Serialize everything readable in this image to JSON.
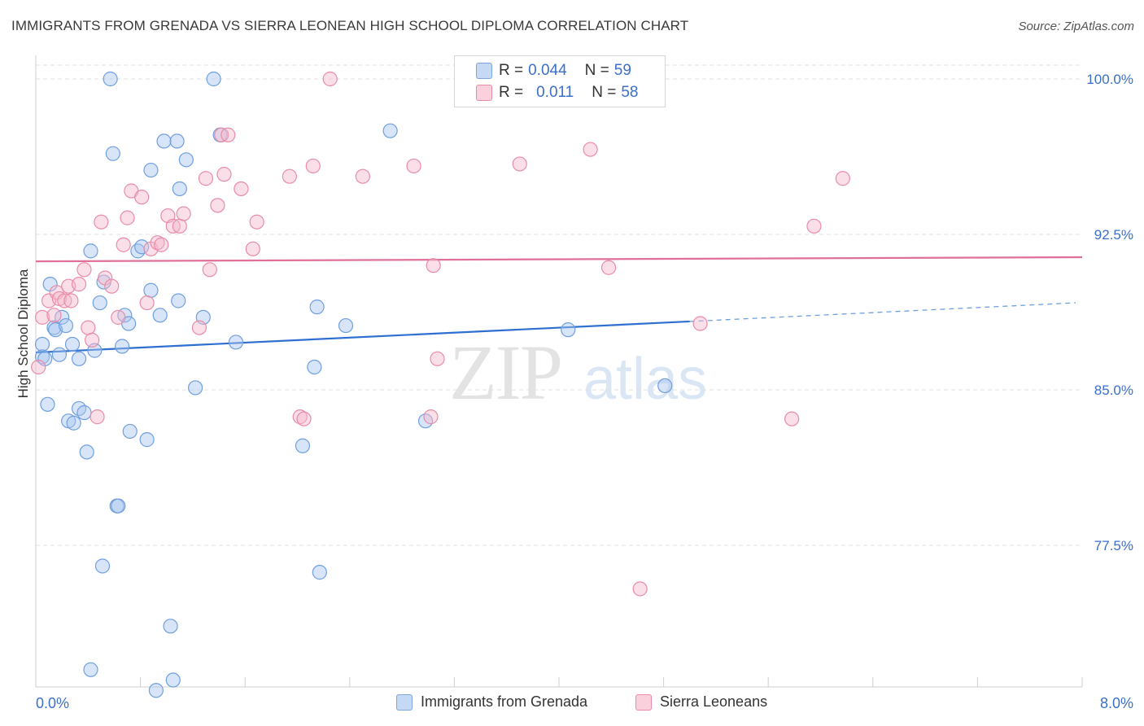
{
  "header": {
    "title": "IMMIGRANTS FROM GRENADA VS SIERRA LEONEAN HIGH SCHOOL DIPLOMA CORRELATION CHART",
    "source": "Source: ZipAtlas.com"
  },
  "watermark": {
    "zip": "ZIP",
    "atlas": "atlas"
  },
  "legend_box": {
    "rows": [
      {
        "r_label": "R =",
        "r_value": "0.044",
        "n_label": "N =",
        "n_value": "59",
        "color": "#a9c6ef"
      },
      {
        "r_label": "R =",
        "r_value": "0.011",
        "n_label": "N =",
        "n_value": "58",
        "color": "#f5b8cb"
      }
    ]
  },
  "bottom_legend": {
    "items": [
      {
        "label": "Immigrants from Grenada",
        "color": "#a9c6ef"
      },
      {
        "label": "Sierra Leoneans",
        "color": "#f5b8cb"
      }
    ]
  },
  "chart_data": {
    "type": "scatter",
    "title": "IMMIGRANTS FROM GRENADA VS SIERRA LEONEAN HIGH SCHOOL DIPLOMA CORRELATION CHART",
    "xlabel": "",
    "ylabel": "High School Diploma",
    "xlim": [
      0,
      8.0
    ],
    "ylim": [
      70.4,
      100.6
    ],
    "x_tick_labels": [
      "0.0%",
      "8.0%"
    ],
    "y_ticks": [
      77.5,
      85.0,
      92.5,
      100.0
    ],
    "y_tick_labels": [
      "77.5%",
      "85.0%",
      "92.5%",
      "100.0%"
    ],
    "grid": "horizontal dashed",
    "legend_position": "top-center",
    "series": [
      {
        "name": "Immigrants from Grenada",
        "color": "#6f9fdf",
        "fill": "#a9c6ef",
        "trend": {
          "x0": 0.0,
          "y0": 86.8,
          "x1": 5.0,
          "y1": 88.3,
          "dashed_to_x": 7.95,
          "dashed_to_y": 89.2
        },
        "points": [
          [
            0.05,
            86.6
          ],
          [
            0.05,
            87.2
          ],
          [
            0.07,
            86.5
          ],
          [
            0.09,
            84.3
          ],
          [
            0.11,
            90.1
          ],
          [
            0.14,
            88.0
          ],
          [
            0.15,
            87.9
          ],
          [
            0.18,
            86.7
          ],
          [
            0.2,
            88.5
          ],
          [
            0.23,
            88.1
          ],
          [
            0.25,
            83.5
          ],
          [
            0.28,
            87.2
          ],
          [
            0.29,
            83.4
          ],
          [
            0.33,
            86.5
          ],
          [
            0.33,
            84.1
          ],
          [
            0.37,
            83.9
          ],
          [
            0.39,
            82.0
          ],
          [
            0.42,
            91.7
          ],
          [
            0.45,
            86.9
          ],
          [
            0.49,
            89.2
          ],
          [
            0.52,
            90.2
          ],
          [
            0.57,
            100.0
          ],
          [
            0.59,
            96.4
          ],
          [
            0.62,
            79.4
          ],
          [
            0.63,
            79.4
          ],
          [
            0.66,
            87.1
          ],
          [
            0.68,
            88.6
          ],
          [
            0.71,
            88.2
          ],
          [
            0.72,
            83.0
          ],
          [
            0.78,
            91.7
          ],
          [
            0.81,
            91.9
          ],
          [
            0.85,
            82.6
          ],
          [
            0.88,
            95.6
          ],
          [
            0.88,
            89.8
          ],
          [
            0.92,
            70.5
          ],
          [
            0.95,
            88.6
          ],
          [
            0.98,
            97.0
          ],
          [
            1.03,
            73.6
          ],
          [
            1.05,
            71.0
          ],
          [
            1.08,
            97.0
          ],
          [
            1.09,
            89.3
          ],
          [
            1.1,
            94.7
          ],
          [
            1.15,
            96.1
          ],
          [
            1.22,
            85.1
          ],
          [
            1.28,
            88.5
          ],
          [
            1.36,
            100.0
          ],
          [
            1.41,
            97.3
          ],
          [
            1.53,
            87.3
          ],
          [
            2.04,
            82.3
          ],
          [
            2.13,
            86.1
          ],
          [
            2.15,
            89.0
          ],
          [
            2.17,
            76.2
          ],
          [
            2.37,
            88.1
          ],
          [
            2.71,
            97.5
          ],
          [
            2.98,
            83.5
          ],
          [
            4.07,
            87.9
          ],
          [
            4.81,
            85.2
          ],
          [
            0.42,
            71.5
          ],
          [
            0.51,
            76.5
          ]
        ]
      },
      {
        "name": "Sierra Leoneans",
        "color": "#e88ca8",
        "fill": "#f5b8cb",
        "trend": {
          "x0": 0.0,
          "y0": 91.2,
          "x1": 8.0,
          "y1": 91.4
        },
        "points": [
          [
            0.02,
            86.1
          ],
          [
            0.05,
            88.5
          ],
          [
            0.1,
            89.3
          ],
          [
            0.14,
            88.6
          ],
          [
            0.16,
            89.7
          ],
          [
            0.18,
            89.4
          ],
          [
            0.22,
            89.3
          ],
          [
            0.25,
            90.0
          ],
          [
            0.27,
            89.3
          ],
          [
            0.33,
            90.1
          ],
          [
            0.37,
            90.8
          ],
          [
            0.4,
            88.0
          ],
          [
            0.43,
            87.4
          ],
          [
            0.47,
            83.7
          ],
          [
            0.5,
            93.1
          ],
          [
            0.53,
            90.4
          ],
          [
            0.58,
            90.0
          ],
          [
            0.63,
            88.5
          ],
          [
            0.67,
            92.0
          ],
          [
            0.7,
            93.3
          ],
          [
            0.73,
            94.6
          ],
          [
            0.81,
            94.3
          ],
          [
            0.85,
            89.2
          ],
          [
            0.88,
            91.8
          ],
          [
            0.93,
            92.1
          ],
          [
            0.96,
            92.0
          ],
          [
            1.01,
            93.4
          ],
          [
            1.05,
            92.9
          ],
          [
            1.1,
            92.9
          ],
          [
            1.13,
            93.5
          ],
          [
            1.25,
            88.0
          ],
          [
            1.3,
            95.2
          ],
          [
            1.33,
            90.8
          ],
          [
            1.39,
            93.9
          ],
          [
            1.42,
            97.3
          ],
          [
            1.44,
            95.4
          ],
          [
            1.47,
            97.3
          ],
          [
            1.57,
            94.7
          ],
          [
            1.66,
            91.8
          ],
          [
            1.69,
            93.1
          ],
          [
            1.94,
            95.3
          ],
          [
            2.02,
            83.7
          ],
          [
            2.05,
            83.6
          ],
          [
            2.12,
            95.8
          ],
          [
            2.25,
            100.0
          ],
          [
            2.5,
            95.3
          ],
          [
            2.89,
            95.8
          ],
          [
            3.02,
            83.7
          ],
          [
            3.04,
            91.0
          ],
          [
            3.07,
            86.5
          ],
          [
            3.7,
            95.9
          ],
          [
            4.24,
            96.6
          ],
          [
            4.38,
            90.9
          ],
          [
            4.62,
            75.4
          ],
          [
            5.08,
            88.2
          ],
          [
            5.78,
            83.6
          ],
          [
            5.95,
            92.9
          ],
          [
            6.17,
            95.2
          ]
        ]
      }
    ]
  }
}
